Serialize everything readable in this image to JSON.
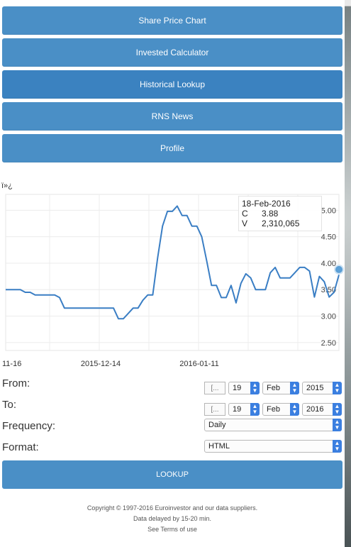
{
  "nav": [
    {
      "label": "Share Price Chart",
      "active": false
    },
    {
      "label": "Invested Calculator",
      "active": false
    },
    {
      "label": "Historical Lookup",
      "active": true
    },
    {
      "label": "RNS News",
      "active": false
    },
    {
      "label": "Profile",
      "active": false
    }
  ],
  "stray_text": "ï»¿",
  "chart_data": {
    "type": "line",
    "x_tick_labels": [
      "11-16",
      "2015-12-14",
      "2016-01-11"
    ],
    "y_tick_labels": [
      "2.50",
      "3.00",
      "3.50",
      "4.00",
      "4.50",
      "5.00"
    ],
    "ylim": [
      2.35,
      5.3
    ],
    "series_color": "#3a7ec4",
    "series": [
      {
        "values": [
          3.5,
          3.5,
          3.5,
          3.5,
          3.45,
          3.45,
          3.4,
          3.4,
          3.4,
          3.4,
          3.4,
          3.35,
          3.15,
          3.15,
          3.15,
          3.15,
          3.15,
          3.15,
          3.15,
          3.15,
          3.15,
          3.15,
          3.15,
          2.95,
          2.95,
          3.05,
          3.15,
          3.15,
          3.3,
          3.4,
          3.4,
          4.1,
          4.7,
          4.98,
          4.98,
          5.08,
          4.9,
          4.9,
          4.7,
          4.7,
          4.5,
          4.05,
          3.58,
          3.58,
          3.35,
          3.35,
          3.58,
          3.25,
          3.62,
          3.8,
          3.72,
          3.5,
          3.5,
          3.5,
          3.82,
          3.92,
          3.72,
          3.72,
          3.72,
          3.82,
          3.92,
          3.92,
          3.85,
          3.36,
          3.75,
          3.65,
          3.36,
          3.45,
          3.78
        ]
      }
    ],
    "tooltip": {
      "date": "18-Feb-2016",
      "close_label": "C",
      "close": "3.88",
      "volume_label": "V",
      "volume": "2,310,065"
    }
  },
  "form": {
    "from_label": "From:",
    "to_label": "To:",
    "frequency_label": "Frequency:",
    "format_label": "Format:",
    "calendar_icon_text": "[...",
    "from": {
      "day": "19",
      "month": "Feb",
      "year": "2015"
    },
    "to": {
      "day": "19",
      "month": "Feb",
      "year": "2016"
    },
    "frequency": "Daily",
    "format": "HTML",
    "lookup_label": "LOOKUP"
  },
  "footer": {
    "copyright": "Copyright © 1997-2016 Euroinvestor and our data suppliers.",
    "delay": "Data delayed by 15-20 min.",
    "terms": "See Terms of use"
  }
}
